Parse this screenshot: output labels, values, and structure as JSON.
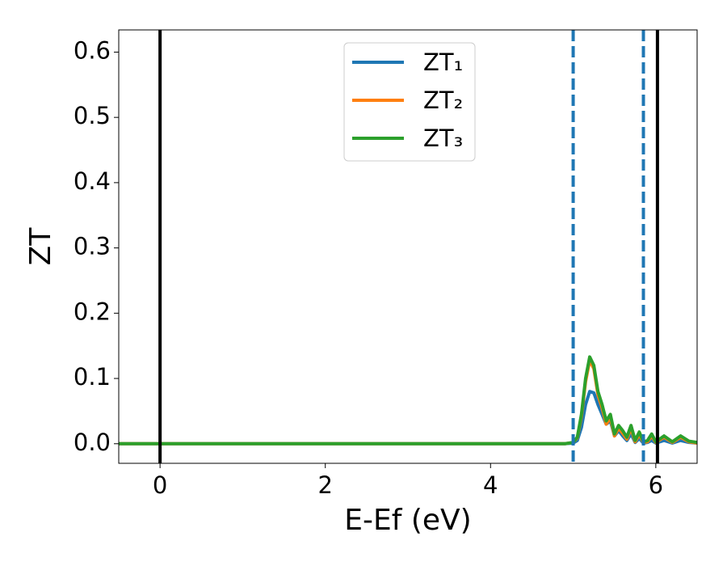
{
  "chart_data": {
    "type": "line",
    "xlabel": "E-Ef (eV)",
    "ylabel": "ZT",
    "x": [
      -0.5,
      4.9,
      5.0,
      5.05,
      5.1,
      5.15,
      5.2,
      5.25,
      5.3,
      5.35,
      5.4,
      5.45,
      5.5,
      5.55,
      5.6,
      5.65,
      5.7,
      5.75,
      5.8,
      5.85,
      5.9,
      5.95,
      6.0,
      6.1,
      6.2,
      6.3,
      6.4,
      6.5
    ],
    "series": [
      {
        "name": "ZT₁",
        "color": "#1f77b4",
        "values": [
          0,
          0,
          0.001,
          0.005,
          0.025,
          0.06,
          0.08,
          0.078,
          0.06,
          0.045,
          0.03,
          0.035,
          0.012,
          0.02,
          0.012,
          0.005,
          0.015,
          0.002,
          0.008,
          0.001,
          0.002,
          0.005,
          0.001,
          0.005,
          0.001,
          0.005,
          0.002,
          0.001
        ]
      },
      {
        "name": "ZT₂",
        "color": "#ff7f0e",
        "values": [
          0,
          0,
          0.002,
          0.009,
          0.042,
          0.095,
          0.128,
          0.115,
          0.075,
          0.055,
          0.03,
          0.04,
          0.012,
          0.024,
          0.016,
          0.007,
          0.024,
          0.003,
          0.014,
          0.002,
          0.003,
          0.012,
          0.002,
          0.01,
          0.002,
          0.01,
          0.003,
          0.001
        ]
      },
      {
        "name": "ZT₃",
        "color": "#2ca02c",
        "values": [
          0,
          0,
          0.002,
          0.01,
          0.045,
          0.1,
          0.133,
          0.12,
          0.08,
          0.06,
          0.035,
          0.045,
          0.015,
          0.028,
          0.02,
          0.01,
          0.028,
          0.005,
          0.018,
          0.003,
          0.005,
          0.015,
          0.003,
          0.012,
          0.003,
          0.012,
          0.004,
          0.002
        ]
      }
    ],
    "vlines": [
      {
        "x": 0,
        "color": "#000000",
        "style": "solid"
      },
      {
        "x": 6.02,
        "color": "#000000",
        "style": "solid"
      },
      {
        "x": 5.0,
        "color": "#1f77b4",
        "style": "dashed"
      },
      {
        "x": 5.85,
        "color": "#1f77b4",
        "style": "dashed"
      }
    ],
    "xlim": [
      -0.5,
      6.5
    ],
    "xticks": [
      0,
      2,
      4,
      6
    ],
    "ylim": [
      -0.03,
      0.634
    ],
    "yticks": [
      {
        "value": 0,
        "label": "0.0"
      },
      0.1,
      0.2,
      0.3,
      0.4,
      0.5,
      0.6
    ],
    "legend": "upper center",
    "grid": false
  }
}
